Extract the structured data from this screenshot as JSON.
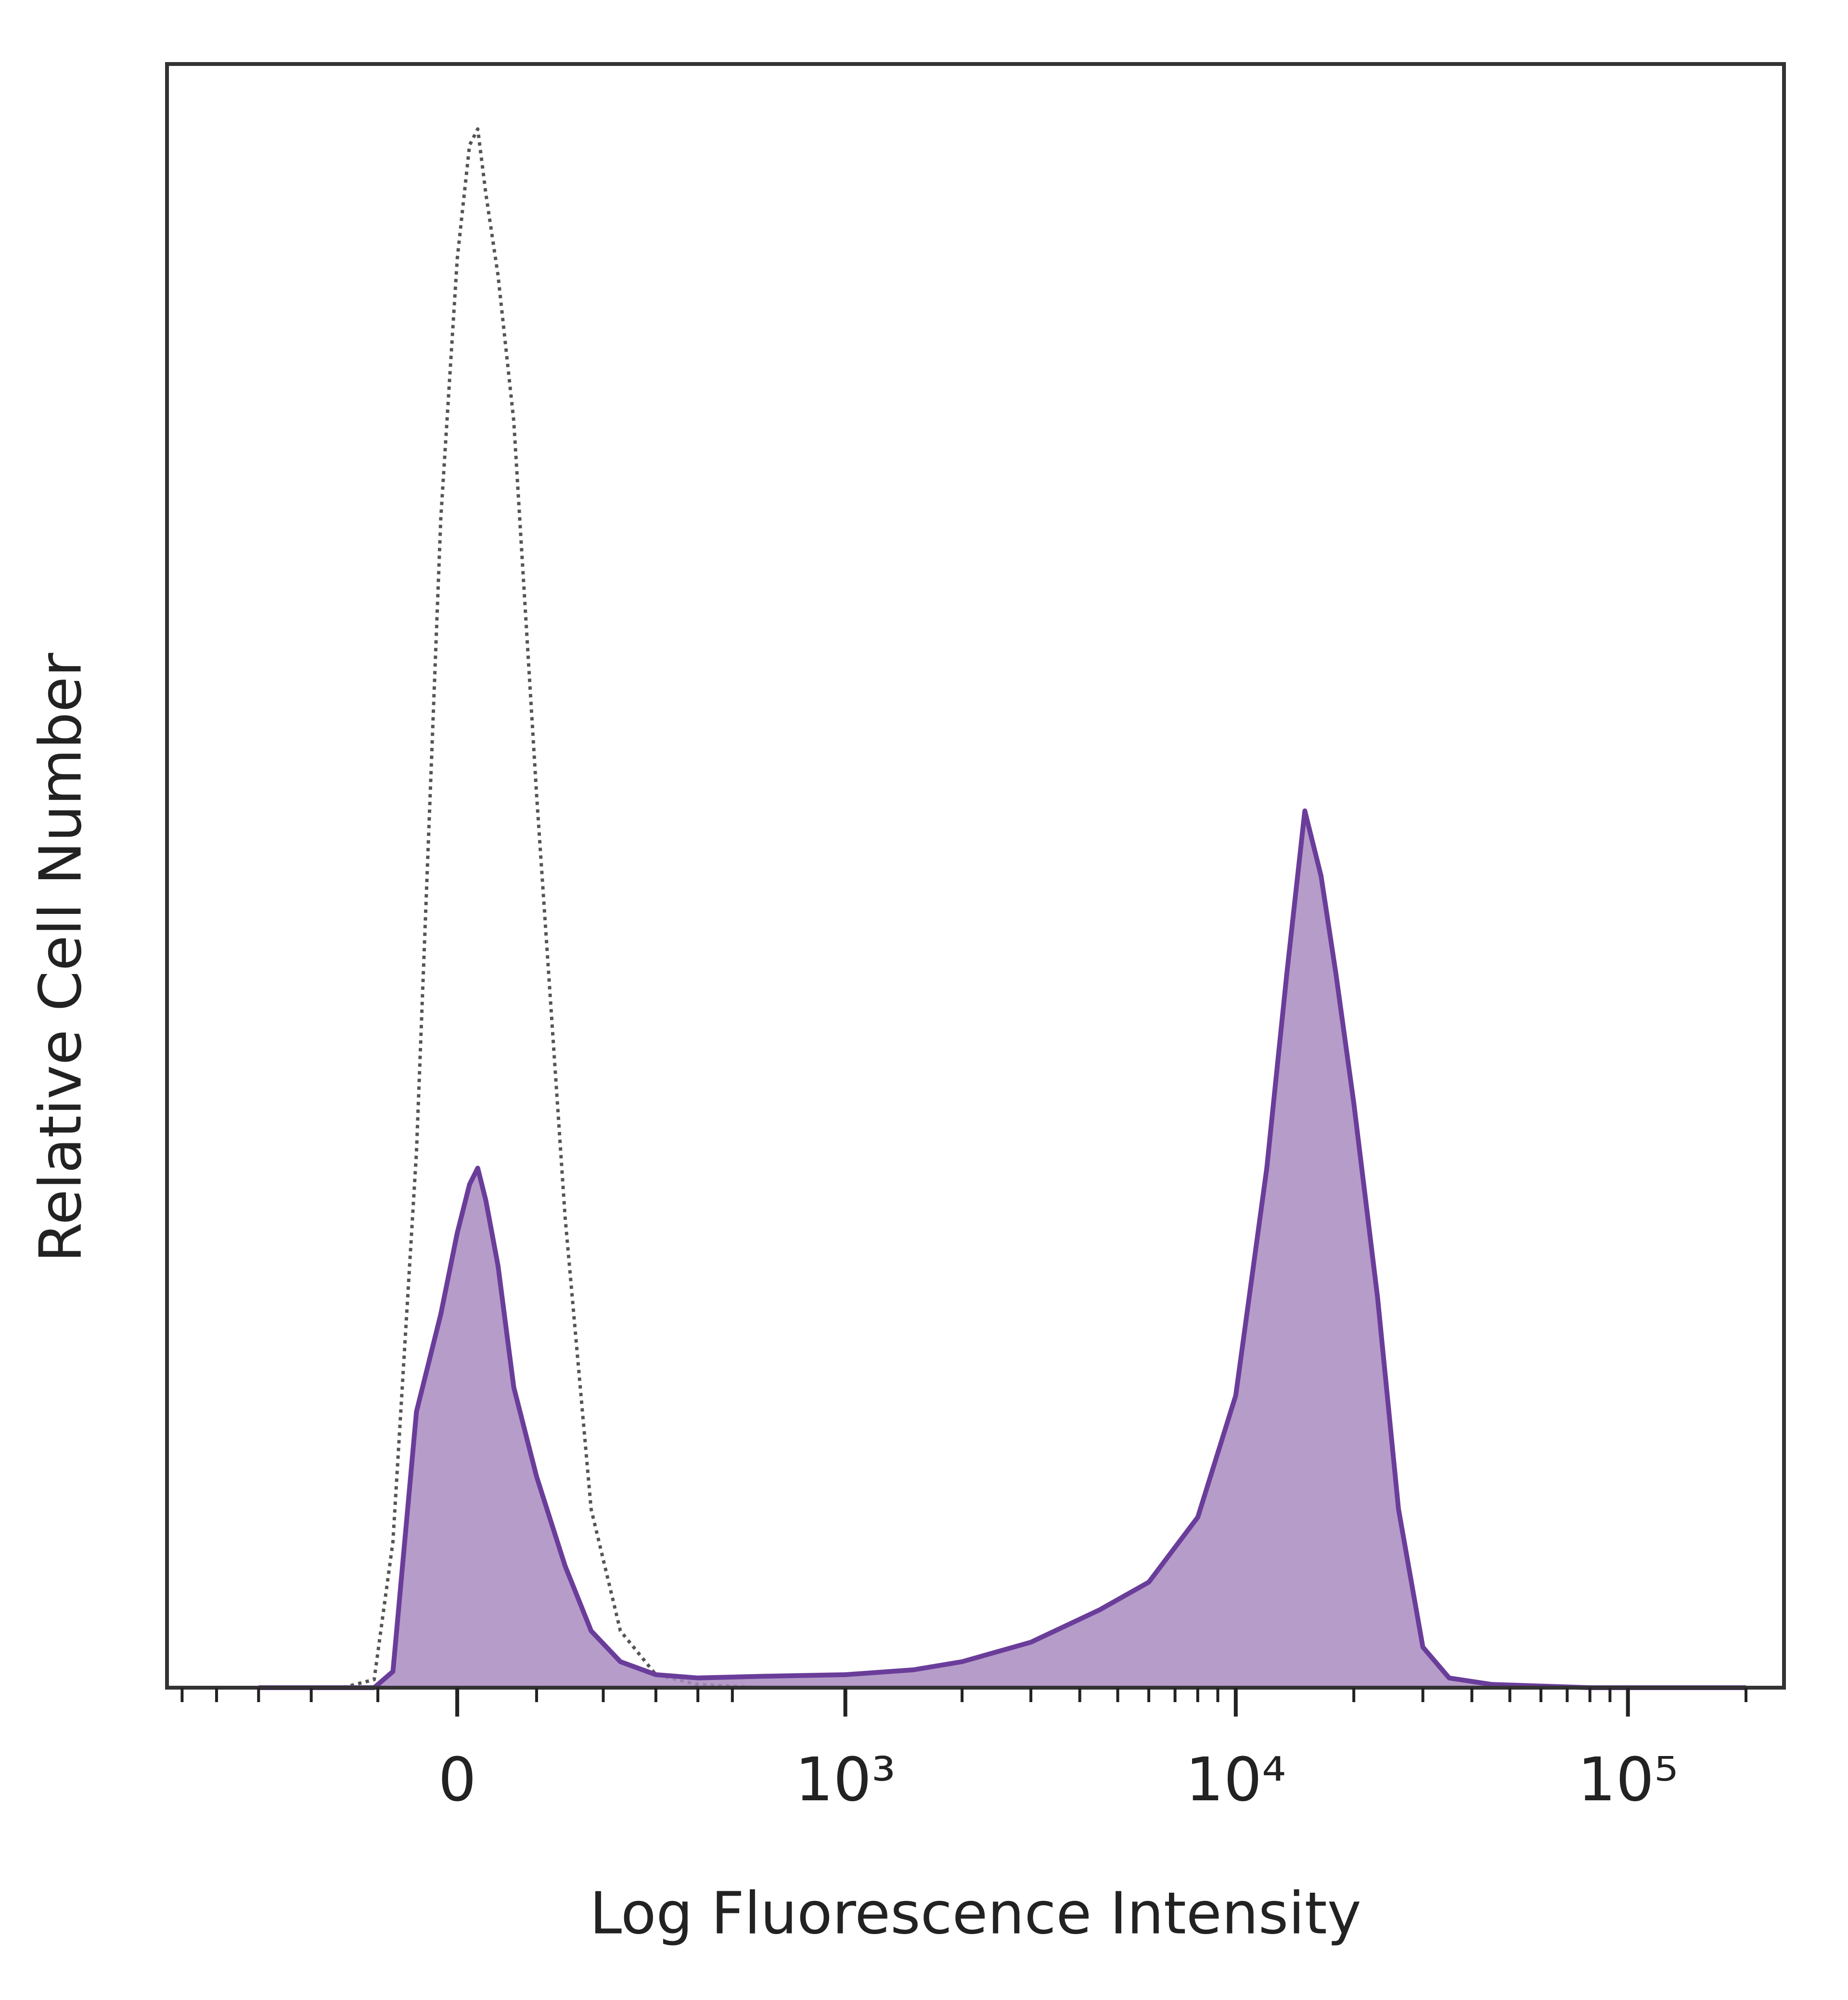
{
  "chart_data": {
    "type": "histogram-overlay",
    "xlabel": "Log Fluorescence Intensity",
    "ylabel": "Relative Cell Number",
    "xscale": "asinh",
    "xlim": [
      -550,
      250000
    ],
    "ylim": [
      0,
      100
    ],
    "xticks": [
      0,
      {
        "value": 1000,
        "label": "10³"
      },
      {
        "value": 10000,
        "label": "10⁴"
      },
      {
        "value": 100000,
        "label": "10⁵"
      }
    ],
    "xminorticks": [
      -500,
      -400,
      -300,
      -200,
      -100,
      100,
      200,
      300,
      400,
      500,
      2000,
      3000,
      4000,
      5000,
      6000,
      7000,
      8000,
      9000,
      20000,
      30000,
      40000,
      50000,
      60000,
      70000,
      80000,
      90000,
      200000
    ],
    "x": [
      -300,
      -150,
      -105,
      -80,
      -50,
      -20,
      0,
      15,
      25,
      35,
      50,
      70,
      100,
      140,
      180,
      230,
      300,
      400,
      600,
      1000,
      1500,
      2000,
      3000,
      4500,
      6000,
      8000,
      10000,
      12000,
      13500,
      15000,
      16500,
      18000,
      20000,
      23000,
      26000,
      30000,
      35000,
      45000,
      80000,
      200000
    ],
    "series": [
      {
        "color": "#555555",
        "style": "dotted",
        "values": [
          0,
          0,
          0.5,
          9,
          33,
          72,
          88,
          95,
          96,
          92,
          87,
          78,
          55,
          29,
          11,
          3.5,
          0.8,
          0.2,
          0,
          0,
          0,
          0,
          0,
          0,
          0,
          0,
          0,
          0,
          0,
          0,
          0,
          0,
          0,
          0,
          0,
          0,
          0,
          0,
          0,
          0
        ]
      },
      {
        "color": "#6a3d9a",
        "fill": "#a98bc0",
        "style": "filled",
        "values": [
          0,
          0,
          0,
          1,
          17,
          23,
          28,
          31,
          32,
          30,
          26,
          18.5,
          13,
          7.5,
          3.5,
          1.6,
          0.8,
          0.6,
          0.7,
          0.8,
          1.1,
          1.6,
          2.8,
          4.8,
          6.5,
          10.5,
          18,
          32,
          44,
          54,
          50,
          44,
          36,
          24,
          11,
          2.5,
          0.6,
          0.2,
          0,
          0
        ]
      }
    ]
  }
}
